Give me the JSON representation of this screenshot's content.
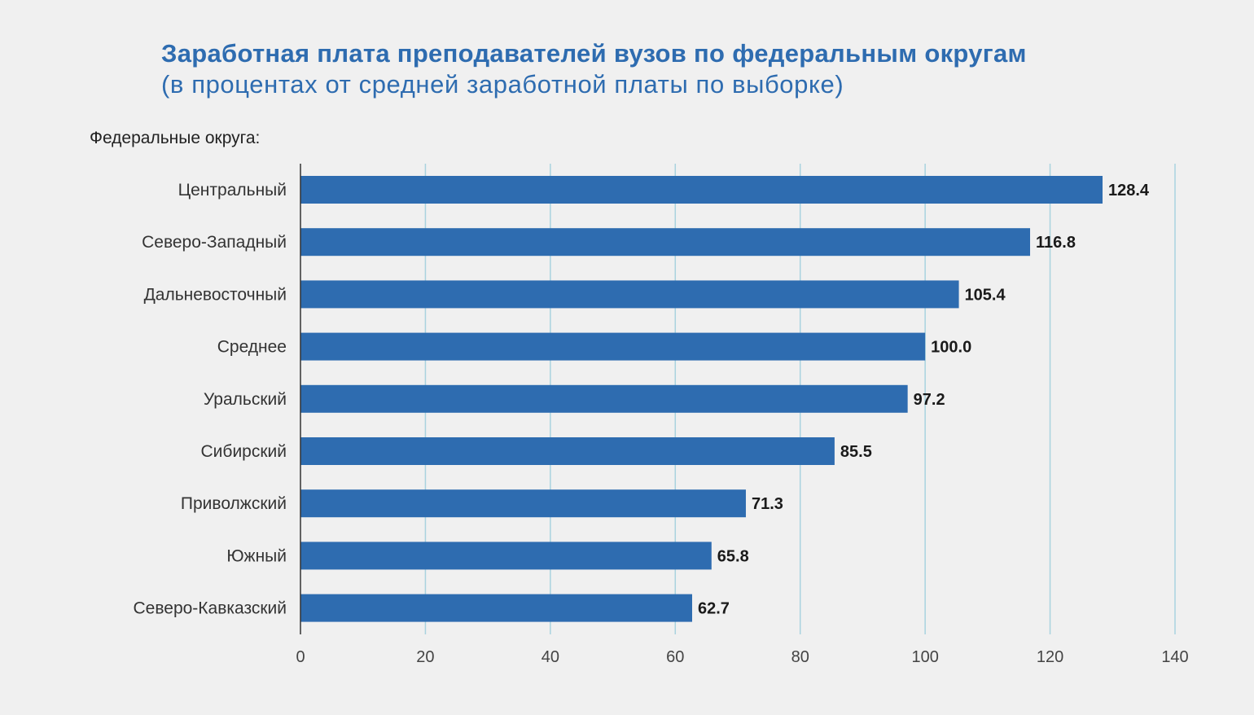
{
  "chart_data": {
    "type": "bar",
    "orientation": "horizontal",
    "title": "Заработная плата преподавателей вузов по федеральным округам",
    "subtitle": "(в процентах от средней заработной платы по выборке)",
    "category_axis_title": "Федеральные округа:",
    "categories": [
      "Центральный",
      "Северо-Западный",
      "Дальневосточный",
      "Среднее",
      "Уральский",
      "Сибирский",
      "Приволжский",
      "Южный",
      "Северо-Кавказский"
    ],
    "values": [
      128.4,
      116.8,
      105.4,
      100.0,
      97.2,
      85.5,
      71.3,
      65.8,
      62.7
    ],
    "value_labels": [
      "128.4",
      "116.8",
      "105.4",
      "100.0",
      "97.2",
      "85.5",
      "71.3",
      "65.8",
      "62.7"
    ],
    "xlim": [
      0,
      140
    ],
    "x_ticks": [
      0,
      20,
      40,
      60,
      80,
      100,
      120,
      140
    ],
    "x_tick_labels": [
      "0",
      "20",
      "40",
      "60",
      "80",
      "100",
      "120",
      "140"
    ],
    "grid": "vertical",
    "legend": "none",
    "colors": {
      "bar": "#2e6cb0",
      "grid": "#a9d3df",
      "axis": "#333333",
      "title": "#2e6cb0",
      "background": "#f0f0f0"
    }
  }
}
